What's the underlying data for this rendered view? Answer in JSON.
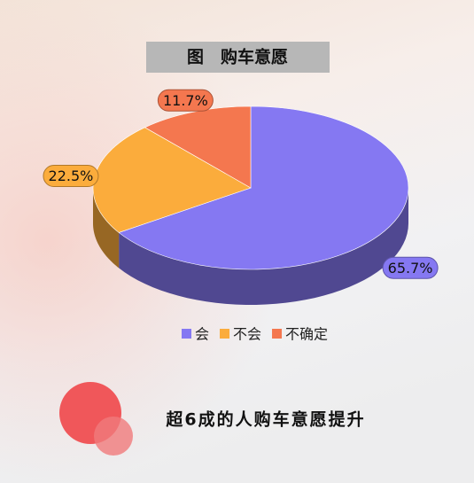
{
  "chart_data": {
    "type": "pie",
    "title": "图　购车意愿",
    "categories": [
      "会",
      "不会",
      "不确定"
    ],
    "values": [
      65.7,
      22.5,
      11.7
    ],
    "value_labels": [
      "65.7%",
      "22.5%",
      "11.7%"
    ],
    "colors": [
      "#8578f2",
      "#fbac3c",
      "#f4774f"
    ],
    "legend": "bottom"
  },
  "headline": "超6成的人购车意愿提升"
}
